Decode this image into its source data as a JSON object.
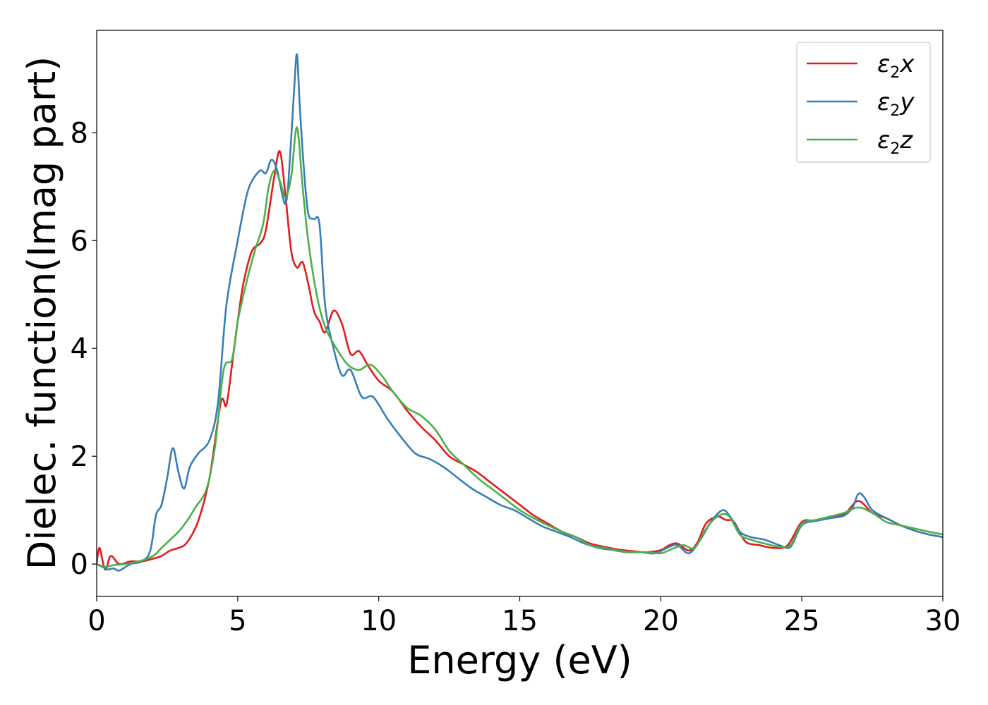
{
  "chart_data": {
    "type": "line",
    "title": "",
    "xlabel": "Energy (eV)",
    "ylabel": "Dielec. function(Imag part)",
    "xlim": [
      0,
      30
    ],
    "ylim": [
      -0.6,
      9.9
    ],
    "xticks": [
      0,
      5,
      10,
      15,
      20,
      25,
      30
    ],
    "yticks": [
      0,
      2,
      4,
      6,
      8
    ],
    "grid": false,
    "legend_position": "top-right",
    "series": [
      {
        "name": "ε2x",
        "label_base": "ε",
        "label_sub": "2",
        "label_var": "x",
        "color": "#e41a1c",
        "x": [
          0,
          0.1,
          0.3,
          0.5,
          0.8,
          1.2,
          1.6,
          2.0,
          2.3,
          2.6,
          2.9,
          3.2,
          3.6,
          4.0,
          4.4,
          4.6,
          4.8,
          5.0,
          5.2,
          5.5,
          5.8,
          6.0,
          6.3,
          6.5,
          6.7,
          6.9,
          7.1,
          7.3,
          7.5,
          7.7,
          7.9,
          8.1,
          8.4,
          8.7,
          9.0,
          9.3,
          9.6,
          10.0,
          10.5,
          11.0,
          11.5,
          12.0,
          12.5,
          13.0,
          13.5,
          14.0,
          14.5,
          15.0,
          15.5,
          16.0,
          16.5,
          17.0,
          17.5,
          18.0,
          18.5,
          19.0,
          19.5,
          20.0,
          20.3,
          20.6,
          21.0,
          21.3,
          21.6,
          22.0,
          22.3,
          22.6,
          23.0,
          23.5,
          24.0,
          24.5,
          25.0,
          25.5,
          26.0,
          26.5,
          27.0,
          27.5,
          28.0,
          28.5,
          29.0,
          29.5,
          30.0
        ],
        "y": [
          0.0,
          0.3,
          -0.1,
          0.15,
          0.0,
          0.05,
          0.05,
          0.1,
          0.15,
          0.25,
          0.3,
          0.4,
          0.8,
          1.6,
          3.0,
          2.95,
          3.7,
          4.5,
          5.2,
          5.8,
          5.95,
          6.2,
          7.2,
          7.65,
          6.8,
          5.8,
          5.5,
          5.6,
          5.2,
          4.7,
          4.5,
          4.3,
          4.7,
          4.45,
          3.9,
          3.95,
          3.7,
          3.4,
          3.2,
          2.85,
          2.55,
          2.3,
          2.0,
          1.85,
          1.7,
          1.5,
          1.3,
          1.1,
          0.9,
          0.75,
          0.6,
          0.5,
          0.38,
          0.32,
          0.27,
          0.24,
          0.22,
          0.26,
          0.35,
          0.38,
          0.25,
          0.4,
          0.75,
          0.88,
          0.82,
          0.78,
          0.42,
          0.35,
          0.3,
          0.35,
          0.78,
          0.8,
          0.88,
          0.92,
          1.17,
          0.95,
          0.85,
          0.72,
          0.62,
          0.55,
          0.5
        ]
      },
      {
        "name": "ε2y",
        "label_base": "ε",
        "label_sub": "2",
        "label_var": "y",
        "color": "#377eb8",
        "x": [
          0,
          0.2,
          0.4,
          0.6,
          0.8,
          1.2,
          1.6,
          1.9,
          2.1,
          2.3,
          2.5,
          2.7,
          2.9,
          3.1,
          3.3,
          3.6,
          4.0,
          4.3,
          4.6,
          5.0,
          5.3,
          5.5,
          5.8,
          6.0,
          6.2,
          6.4,
          6.6,
          6.7,
          6.8,
          7.0,
          7.1,
          7.2,
          7.35,
          7.5,
          7.7,
          7.9,
          8.1,
          8.4,
          8.7,
          9.0,
          9.4,
          9.8,
          10.3,
          10.8,
          11.3,
          11.8,
          12.3,
          12.8,
          13.3,
          13.8,
          14.3,
          14.8,
          15.3,
          15.8,
          16.3,
          16.8,
          17.3,
          17.8,
          18.3,
          18.8,
          19.3,
          19.8,
          20.3,
          20.6,
          21.0,
          21.4,
          21.8,
          22.2,
          22.5,
          22.8,
          23.2,
          23.7,
          24.2,
          24.6,
          25.0,
          25.5,
          26.0,
          26.5,
          26.8,
          27.0,
          27.2,
          27.5,
          28.0,
          28.5,
          29.0,
          29.5,
          30.0
        ],
        "y": [
          0.0,
          -0.05,
          -0.1,
          -0.08,
          -0.12,
          0.0,
          0.05,
          0.25,
          0.9,
          1.1,
          1.6,
          2.15,
          1.7,
          1.4,
          1.8,
          2.05,
          2.3,
          3.0,
          4.8,
          6.0,
          6.8,
          7.1,
          7.3,
          7.25,
          7.5,
          7.3,
          6.8,
          6.7,
          7.1,
          8.8,
          9.45,
          8.5,
          7.3,
          6.5,
          6.4,
          6.3,
          4.8,
          4.0,
          3.5,
          3.6,
          3.1,
          3.1,
          2.7,
          2.35,
          2.05,
          1.95,
          1.8,
          1.6,
          1.4,
          1.25,
          1.1,
          1.0,
          0.85,
          0.7,
          0.6,
          0.5,
          0.38,
          0.3,
          0.26,
          0.22,
          0.22,
          0.2,
          0.32,
          0.35,
          0.2,
          0.45,
          0.8,
          1.0,
          0.85,
          0.6,
          0.5,
          0.45,
          0.35,
          0.32,
          0.72,
          0.8,
          0.85,
          0.9,
          1.05,
          1.3,
          1.25,
          1.0,
          0.85,
          0.72,
          0.62,
          0.55,
          0.5
        ]
      },
      {
        "name": "ε2z",
        "label_base": "ε",
        "label_sub": "2",
        "label_var": "z",
        "color": "#4daf4a",
        "x": [
          0,
          0.3,
          0.6,
          1.0,
          1.5,
          2.0,
          2.3,
          2.6,
          2.9,
          3.2,
          3.5,
          3.9,
          4.2,
          4.5,
          4.8,
          5.0,
          5.3,
          5.6,
          5.9,
          6.1,
          6.3,
          6.5,
          6.7,
          6.9,
          7.1,
          7.3,
          7.5,
          7.8,
          8.1,
          8.5,
          8.9,
          9.3,
          9.7,
          10.1,
          10.5,
          11.0,
          11.5,
          12.0,
          12.5,
          13.0,
          13.5,
          14.0,
          14.5,
          15.0,
          15.5,
          16.0,
          16.5,
          17.0,
          17.5,
          18.0,
          18.5,
          19.0,
          19.5,
          20.0,
          20.4,
          20.8,
          21.2,
          21.6,
          22.0,
          22.4,
          22.8,
          23.2,
          23.7,
          24.2,
          24.6,
          25.0,
          25.5,
          26.0,
          26.5,
          27.0,
          27.5,
          28.0,
          28.5,
          29.0,
          29.5,
          30.0
        ],
        "y": [
          0.0,
          -0.05,
          -0.02,
          0.0,
          0.05,
          0.15,
          0.3,
          0.45,
          0.6,
          0.8,
          1.05,
          1.4,
          2.2,
          3.6,
          3.8,
          4.5,
          5.2,
          5.8,
          6.3,
          7.0,
          7.3,
          7.1,
          6.8,
          7.2,
          8.1,
          7.0,
          6.0,
          5.0,
          4.4,
          4.0,
          3.7,
          3.6,
          3.7,
          3.5,
          3.2,
          2.9,
          2.75,
          2.5,
          2.1,
          1.85,
          1.6,
          1.4,
          1.2,
          1.0,
          0.85,
          0.72,
          0.6,
          0.5,
          0.35,
          0.3,
          0.25,
          0.22,
          0.22,
          0.2,
          0.28,
          0.35,
          0.3,
          0.65,
          0.88,
          0.9,
          0.55,
          0.45,
          0.38,
          0.32,
          0.35,
          0.75,
          0.82,
          0.88,
          0.95,
          1.05,
          0.95,
          0.78,
          0.72,
          0.66,
          0.6,
          0.55
        ]
      }
    ]
  }
}
